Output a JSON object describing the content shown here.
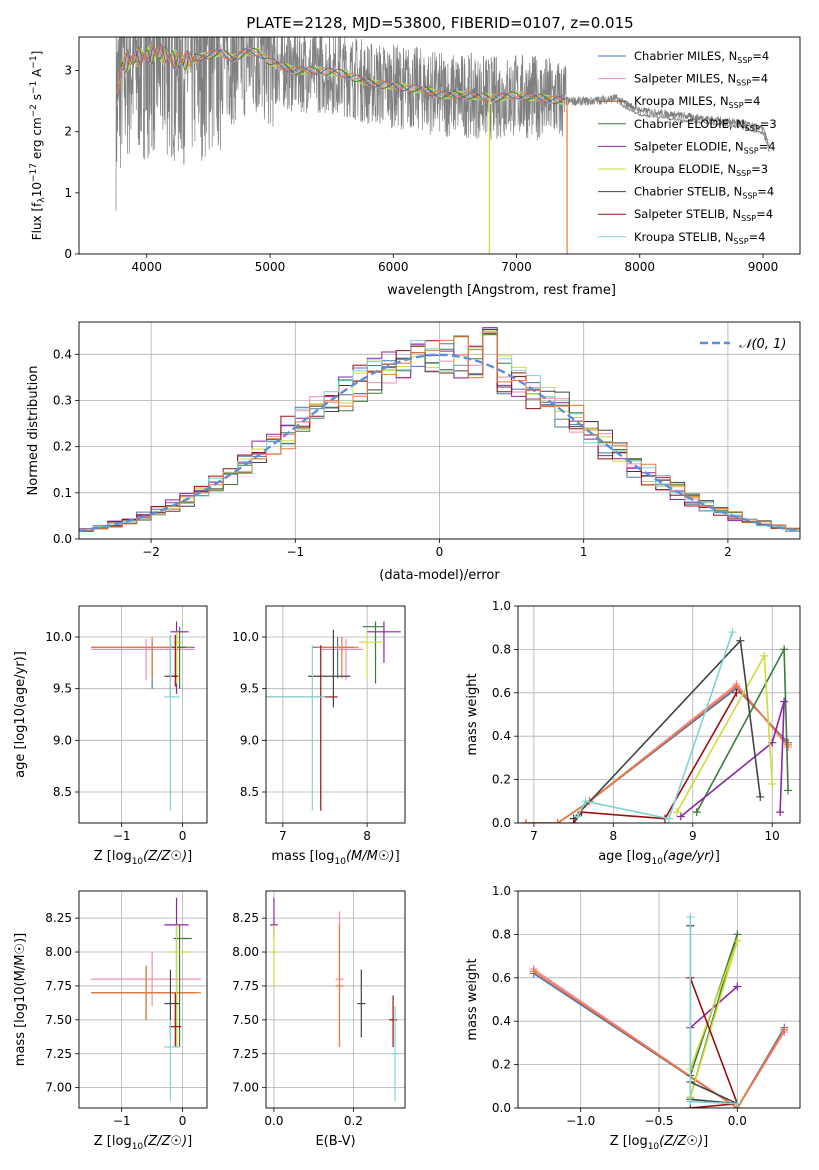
{
  "title": "PLATE=2128, MJD=53800, FIBERID=0107, z=0.015",
  "colors": {
    "chabrier_miles": "#4c72b0",
    "salpeter_miles": "#f28db2",
    "kroupa_miles": "#8b5a2b",
    "chabrier_elodie": "#3a7d3a",
    "salpeter_elodie": "#8e24aa",
    "kroupa_elodie": "#cddc39",
    "chabrier_stelib": "#444444",
    "salpeter_stelib": "#9b1111",
    "kroupa_stelib": "#7fd3d3",
    "data": "#808080",
    "model": "#ee7733",
    "normal": "#5b8fd9"
  },
  "chart_data": [
    {
      "type": "line",
      "id": "spectrum",
      "title": "PLATE=2128, MJD=53800, FIBERID=0107, z=0.015",
      "xlabel": "wavelength [Angstrom, rest frame]",
      "ylabel_main": "Flux [f",
      "ylabel_sub": "λ",
      "ylabel_rest": "10",
      "ylabel_exp": "−17",
      "ylabel_units": " erg cm",
      "ylabel_units_exp": "−2",
      "ylabel_s": " s",
      "ylabel_s_exp": "−1",
      "ylabel_a": " A",
      "ylabel_a_exp": "−1",
      "ylabel_end": "]",
      "xlim": [
        3450,
        9300
      ],
      "ylim": [
        0,
        3.55
      ],
      "xticks": [
        "4000",
        "5000",
        "6000",
        "7000",
        "8000",
        "9000"
      ],
      "yticks": [
        "0",
        "1",
        "2",
        "3"
      ],
      "grid": false,
      "legend_position": "upper-right",
      "legend": [
        {
          "name": "Chabrier MILES, N",
          "sub": "SSP",
          "tail": "=4"
        },
        {
          "name": "Salpeter MILES, N",
          "sub": "SSP",
          "tail": "=4"
        },
        {
          "name": "Kroupa MILES, N",
          "sub": "SSP",
          "tail": "=4"
        },
        {
          "name": "Chabrier ELODIE, N",
          "sub": "SSP",
          "tail": "=3"
        },
        {
          "name": "Salpeter ELODIE, N",
          "sub": "SSP",
          "tail": "=4"
        },
        {
          "name": "Kroupa ELODIE, N",
          "sub": "SSP",
          "tail": "=3"
        },
        {
          "name": "Chabrier STELIB, N",
          "sub": "SSP",
          "tail": "=4"
        },
        {
          "name": "Salpeter STELIB, N",
          "sub": "SSP",
          "tail": "=4"
        },
        {
          "name": "Kroupa STELIB, N",
          "sub": "SSP",
          "tail": "=4"
        }
      ],
      "continuum": {
        "x": [
          3750,
          3800,
          3900,
          4000,
          4100,
          4200,
          4300,
          4400,
          4500,
          4600,
          4700,
          4800,
          4900,
          5000,
          5200,
          5400,
          5600,
          5800,
          6000,
          6200,
          6400,
          6600,
          6800,
          7000,
          7200,
          7400,
          7600,
          7800,
          8000,
          8200,
          8400,
          8600,
          8800,
          9000,
          9050
        ],
        "y": [
          2.4,
          3.1,
          3.2,
          3.25,
          3.3,
          3.2,
          3.15,
          3.2,
          3.25,
          3.3,
          3.2,
          3.3,
          3.3,
          3.15,
          3.0,
          3.0,
          2.95,
          2.8,
          2.75,
          2.7,
          2.6,
          2.6,
          2.55,
          2.6,
          2.55,
          2.5,
          2.5,
          2.55,
          2.35,
          2.3,
          2.25,
          2.2,
          2.15,
          2.05,
          1.75
        ]
      }
    },
    {
      "type": "line",
      "id": "residuals",
      "xlabel": "(data-model)/error",
      "ylabel": "Normed distribution",
      "xlim": [
        -2.5,
        2.5
      ],
      "ylim": [
        0,
        0.47
      ],
      "xticks": [
        "−2",
        "−1",
        "0",
        "1",
        "2"
      ],
      "yticks": [
        "0.0",
        "0.1",
        "0.2",
        "0.3",
        "0.4"
      ],
      "grid": true,
      "legend_position": "upper-right",
      "legend_label": "𝒩(0, 1)",
      "series": [
        {
          "bin_width": 0.1,
          "normal_mean": 0,
          "normal_sd": 1
        }
      ]
    },
    {
      "type": "scatter",
      "id": "age_vs_Z",
      "xlabel": "Z [log10(Z/Z☉)]",
      "ylabel": "age  [log10(age/yr)]",
      "xlim": [
        -1.7,
        0.4
      ],
      "ylim": [
        8.2,
        10.3
      ],
      "xticks": [
        "−1",
        "0"
      ],
      "yticks": [
        "8.5",
        "9.0",
        "9.5",
        "10.0"
      ],
      "grid": true,
      "series": [
        {
          "key": "chabrier_miles",
          "x": -0.5,
          "y": 9.9,
          "xerr": [
            1.0,
            0.7
          ],
          "yerr": [
            0.4,
            0.05
          ]
        },
        {
          "key": "salpeter_miles",
          "x": -0.6,
          "y": 9.88,
          "xerr": [
            0.9,
            0.8
          ],
          "yerr": [
            0.3,
            0.1
          ]
        },
        {
          "key": "kroupa_miles",
          "x": -0.5,
          "y": 9.9,
          "xerr": [
            1.0,
            0.6
          ],
          "yerr": [
            0.3,
            0.1
          ]
        },
        {
          "key": "chabrier_elodie",
          "x": -0.05,
          "y": 9.9,
          "xerr": [
            0.15,
            0.12
          ],
          "yerr": [
            0.4,
            0.2
          ]
        },
        {
          "key": "salpeter_elodie",
          "x": -0.1,
          "y": 10.05,
          "xerr": [
            0.1,
            0.2
          ],
          "yerr": [
            0.6,
            0.1
          ]
        },
        {
          "key": "kroupa_elodie",
          "x": -0.1,
          "y": 9.95,
          "xerr": [
            0.05,
            0.1
          ],
          "yerr": [
            0.4,
            0.1
          ]
        },
        {
          "key": "chabrier_stelib",
          "x": -0.2,
          "y": 9.62,
          "xerr": [
            0.1,
            0.1
          ],
          "yerr": [
            0.2,
            0.4
          ]
        },
        {
          "key": "salpeter_stelib",
          "x": -0.12,
          "y": 9.62,
          "xerr": [
            0.05,
            0.05
          ],
          "yerr": [
            0.1,
            0.4
          ]
        },
        {
          "key": "kroupa_stelib",
          "x": -0.2,
          "y": 9.42,
          "xerr": [
            0.1,
            0.15
          ],
          "yerr": [
            1.1,
            0.6
          ]
        }
      ]
    },
    {
      "type": "scatter",
      "id": "age_vs_mass",
      "xlabel": "mass [log10(M/M☉)]",
      "xlim": [
        6.8,
        8.45
      ],
      "ylim": [
        8.2,
        10.3
      ],
      "xticks": [
        "7",
        "8"
      ],
      "yticks": [
        "8.5",
        "9.0",
        "9.5",
        "10.0"
      ],
      "grid": true,
      "series": [
        {
          "key": "chabrier_miles",
          "x": 7.65,
          "y": 9.9,
          "xerr": [
            0.3,
            0.2
          ],
          "yerr": [
            0.3,
            0.1
          ]
        },
        {
          "key": "salpeter_miles",
          "x": 7.75,
          "y": 9.88,
          "xerr": [
            0.3,
            0.2
          ],
          "yerr": [
            0.3,
            0.1
          ]
        },
        {
          "key": "kroupa_miles",
          "x": 7.7,
          "y": 9.9,
          "xerr": [
            0.3,
            0.2
          ],
          "yerr": [
            0.3,
            0.1
          ]
        },
        {
          "key": "chabrier_elodie",
          "x": 8.1,
          "y": 10.1,
          "xerr": [
            0.15,
            0.1
          ],
          "yerr": [
            0.55,
            0.05
          ]
        },
        {
          "key": "salpeter_elodie",
          "x": 8.2,
          "y": 10.05,
          "xerr": [
            0.2,
            0.2
          ],
          "yerr": [
            0.3,
            0.1
          ]
        },
        {
          "key": "kroupa_elodie",
          "x": 8.0,
          "y": 9.95,
          "xerr": [
            0.1,
            0.2
          ],
          "yerr": [
            0.35,
            0.1
          ]
        },
        {
          "key": "chabrier_stelib",
          "x": 7.6,
          "y": 9.62,
          "xerr": [
            0.3,
            0.2
          ],
          "yerr": [
            0.3,
            0.45
          ]
        },
        {
          "key": "salpeter_stelib",
          "x": 7.45,
          "y": 9.42,
          "xerr": [
            0.75,
            0.2
          ],
          "yerr": [
            1.1,
            0.5
          ]
        },
        {
          "key": "kroupa_stelib",
          "x": 7.35,
          "y": 9.42,
          "xerr": [
            0.55,
            0.15
          ],
          "yerr": [
            1.1,
            0.5
          ]
        }
      ]
    },
    {
      "type": "line",
      "id": "weight_vs_age",
      "xlabel": "age  [log10(age/yr)]",
      "ylabel": "mass weight",
      "xlim": [
        6.8,
        10.35
      ],
      "ylim": [
        0,
        1.0
      ],
      "xticks": [
        "7",
        "8",
        "9",
        "10"
      ],
      "yticks": [
        "0.0",
        "0.2",
        "0.4",
        "0.6",
        "0.8",
        "1.0"
      ],
      "grid": true,
      "series": [
        {
          "key": "chabrier_miles",
          "x": [
            6.9,
            7.3,
            7.7,
            9.55,
            10.2
          ],
          "y": [
            0.0,
            0.0,
            0.1,
            0.62,
            0.37
          ]
        },
        {
          "key": "salpeter_miles",
          "x": [
            6.9,
            7.3,
            7.7,
            9.55,
            10.2
          ],
          "y": [
            0.0,
            0.0,
            0.1,
            0.64,
            0.35
          ]
        },
        {
          "key": "kroupa_miles",
          "x": [
            6.9,
            7.3,
            7.7,
            9.55,
            10.2
          ],
          "y": [
            0.0,
            0.0,
            0.1,
            0.63,
            0.36
          ]
        },
        {
          "key": "chabrier_elodie",
          "x": [
            9.05,
            10.15,
            10.2
          ],
          "y": [
            0.05,
            0.8,
            0.15
          ]
        },
        {
          "key": "salpeter_elodie",
          "x": [
            8.85,
            10.0,
            10.15,
            10.1
          ],
          "y": [
            0.03,
            0.37,
            0.56,
            0.05
          ]
        },
        {
          "key": "kroupa_elodie",
          "x": [
            8.8,
            9.9,
            10.0
          ],
          "y": [
            0.05,
            0.77,
            0.18
          ]
        },
        {
          "key": "chabrier_stelib",
          "x": [
            7.5,
            9.6,
            9.85
          ],
          "y": [
            0.02,
            0.84,
            0.12
          ]
        },
        {
          "key": "salpeter_stelib",
          "x": [
            7.5,
            7.6,
            8.65,
            9.55
          ],
          "y": [
            0.0,
            0.05,
            0.02,
            0.6
          ]
        },
        {
          "key": "kroupa_stelib",
          "x": [
            7.55,
            7.65,
            8.7,
            9.5
          ],
          "y": [
            0.03,
            0.1,
            0.02,
            0.88
          ]
        }
      ]
    },
    {
      "type": "scatter",
      "id": "mass_vs_Z",
      "xlabel": "Z [log10(Z/Z☉)]",
      "ylabel": "mass [log10(M/M☉)]",
      "xlim": [
        -1.7,
        0.4
      ],
      "ylim": [
        6.85,
        8.45
      ],
      "xticks": [
        "−1",
        "0"
      ],
      "yticks": [
        "7.00",
        "7.25",
        "7.50",
        "7.75",
        "8.00",
        "8.25"
      ],
      "grid": true,
      "series": [
        {
          "key": "chabrier_miles",
          "x": -0.6,
          "y": 7.7,
          "xerr": [
            0.9,
            0.8
          ],
          "yerr": [
            0.2,
            0.2
          ]
        },
        {
          "key": "salpeter_miles",
          "x": -0.5,
          "y": 7.8,
          "xerr": [
            1.0,
            0.8
          ],
          "yerr": [
            0.2,
            0.2
          ]
        },
        {
          "key": "kroupa_miles",
          "x": -0.6,
          "y": 7.7,
          "xerr": [
            0.9,
            0.9
          ],
          "yerr": [
            0.2,
            0.2
          ]
        },
        {
          "key": "chabrier_elodie",
          "x": -0.05,
          "y": 8.1,
          "xerr": [
            0.1,
            0.2
          ],
          "yerr": [
            0.8,
            0.1
          ]
        },
        {
          "key": "salpeter_elodie",
          "x": -0.1,
          "y": 8.2,
          "xerr": [
            0.2,
            0.2
          ],
          "yerr": [
            0.9,
            0.2
          ]
        },
        {
          "key": "kroupa_elodie",
          "x": -0.1,
          "y": 8.0,
          "xerr": [
            0.1,
            0.2
          ],
          "yerr": [
            0.7,
            0.2
          ]
        },
        {
          "key": "chabrier_stelib",
          "x": -0.2,
          "y": 7.62,
          "xerr": [
            0.1,
            0.15
          ],
          "yerr": [
            0.25,
            0.25
          ]
        },
        {
          "key": "salpeter_stelib",
          "x": -0.12,
          "y": 7.45,
          "xerr": [
            0.1,
            0.1
          ],
          "yerr": [
            0.15,
            0.25
          ]
        },
        {
          "key": "kroupa_stelib",
          "x": -0.2,
          "y": 7.3,
          "xerr": [
            0.1,
            0.15
          ],
          "yerr": [
            0.4,
            0.2
          ]
        }
      ]
    },
    {
      "type": "scatter",
      "id": "mass_vs_ebv",
      "xlabel": "E(B-V)",
      "xlim": [
        -0.02,
        0.33
      ],
      "ylim": [
        6.85,
        8.45
      ],
      "xticks": [
        "0.0",
        "0.2"
      ],
      "yticks": [
        "7.00",
        "7.25",
        "7.50",
        "7.75",
        "8.00",
        "8.25"
      ],
      "grid": true,
      "series": [
        {
          "key": "salpeter_miles",
          "x": 0.165,
          "y": 7.8,
          "yerr": [
            0.5,
            0.5
          ]
        },
        {
          "key": "kroupa_miles",
          "x": 0.165,
          "y": 7.75,
          "yerr": [
            0.45,
            0.45
          ]
        },
        {
          "key": "salpeter_elodie",
          "x": 0.0,
          "y": 8.2,
          "yerr": [
            0.1,
            0.2
          ]
        },
        {
          "key": "kroupa_elodie",
          "x": 0.0,
          "y": 8.0,
          "yerr": [
            0.25,
            0.2
          ]
        },
        {
          "key": "chabrier_stelib",
          "x": 0.22,
          "y": 7.62,
          "yerr": [
            0.25,
            0.25
          ]
        },
        {
          "key": "salpeter_stelib",
          "x": 0.3,
          "y": 7.5,
          "yerr": [
            0.2,
            0.18
          ]
        },
        {
          "key": "kroupa_stelib",
          "x": 0.305,
          "y": 7.25,
          "yerr": [
            0.35,
            0.35
          ]
        }
      ]
    },
    {
      "type": "line",
      "id": "weight_vs_Z",
      "xlabel": "Z [log10(Z/Z☉)]",
      "ylabel": "mass weight",
      "xlim": [
        -1.4,
        0.4
      ],
      "ylim": [
        0,
        1.0
      ],
      "xticks": [
        "−1.0",
        "−0.5",
        "0.0"
      ],
      "yticks": [
        "0.0",
        "0.2",
        "0.4",
        "0.6",
        "0.8",
        "1.0"
      ],
      "grid": true,
      "series": [
        {
          "key": "chabrier_miles",
          "x": [
            -1.3,
            0.0,
            0.3
          ],
          "y": [
            0.62,
            0.0,
            0.37
          ]
        },
        {
          "key": "salpeter_miles",
          "x": [
            -1.3,
            0.0,
            0.3
          ],
          "y": [
            0.64,
            0.0,
            0.35
          ]
        },
        {
          "key": "kroupa_miles",
          "x": [
            -1.3,
            0.0,
            0.3
          ],
          "y": [
            0.63,
            0.0,
            0.36
          ]
        },
        {
          "key": "chabrier_elodie",
          "x": [
            -0.3,
            0.0,
            -0.3
          ],
          "y": [
            0.15,
            0.8,
            0.05
          ]
        },
        {
          "key": "salpeter_elodie",
          "x": [
            -0.3,
            0.0
          ],
          "y": [
            0.37,
            0.56
          ]
        },
        {
          "key": "kroupa_elodie",
          "x": [
            -0.3,
            0.0,
            -0.3
          ],
          "y": [
            0.05,
            0.77,
            0.18
          ]
        },
        {
          "key": "chabrier_stelib",
          "x": [
            -0.3,
            -0.3,
            0.0,
            -0.3
          ],
          "y": [
            0.84,
            0.12,
            0.02,
            0.04
          ]
        },
        {
          "key": "salpeter_stelib",
          "x": [
            -0.3,
            0.0,
            -0.3
          ],
          "y": [
            0.6,
            0.02,
            0.0
          ]
        },
        {
          "key": "kroupa_stelib",
          "x": [
            -0.3,
            -0.3,
            0.0
          ],
          "y": [
            0.88,
            0.03,
            0.02
          ]
        }
      ]
    }
  ]
}
